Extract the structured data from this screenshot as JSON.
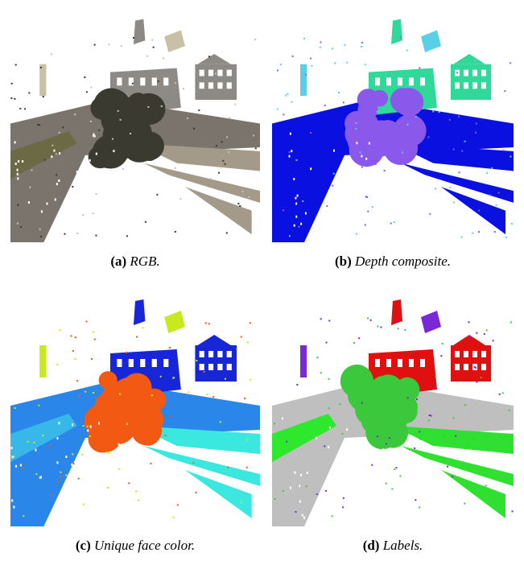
{
  "figure": {
    "panels": [
      {
        "id": "a",
        "tag": "(a)",
        "caption": "RGB.",
        "colors": {
          "ground": "#7a746c",
          "grass": "#6b6a45",
          "building": "#8d8a86",
          "tree": "#3b3a30",
          "far": "#a49a8a",
          "accent": "#c9c1a7"
        }
      },
      {
        "id": "b",
        "tag": "(b)",
        "caption": "Depth composite.",
        "colors": {
          "ground": "#0a10e0",
          "grass": "#0a10e0",
          "building": "#30d89a",
          "tree": "#8a58ea",
          "far": "#0a10e0",
          "accent": "#5ad0e8"
        }
      },
      {
        "id": "c",
        "tag": "(c)",
        "caption": "Unique face color.",
        "colors": {
          "ground": "#2a86e8",
          "grass": "#38b8e8",
          "building": "#1626d8",
          "tree": "#f25a14",
          "far": "#3ae8e0",
          "accent": "#c8e820"
        }
      },
      {
        "id": "d",
        "tag": "(d)",
        "caption": "Labels.",
        "colors": {
          "ground": "#bfbfbf",
          "grass": "#2ee82e",
          "building": "#e01010",
          "tree": "#3cc83c",
          "far": "#30e030",
          "accent": "#7a28d8"
        }
      }
    ]
  }
}
